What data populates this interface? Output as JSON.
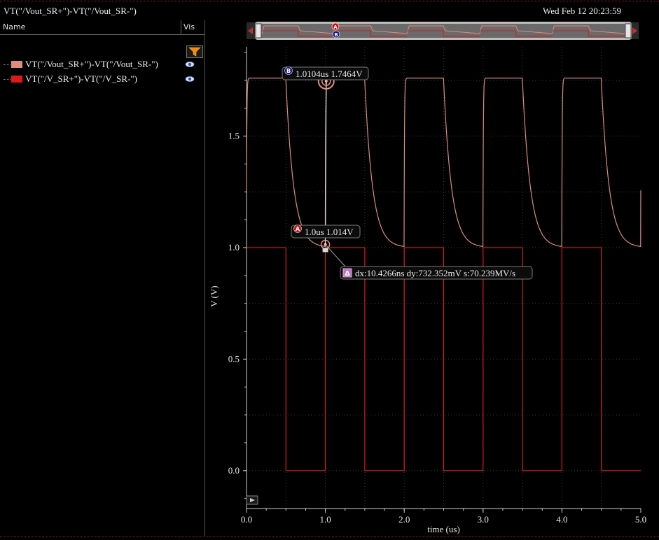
{
  "window": {
    "title": "VT(\"/Vout_SR+\")-VT(\"/Vout_SR-\")",
    "timestamp": "Wed Feb 12 20:23:59"
  },
  "signal_list": {
    "col_name": "Name",
    "col_vis": "Vis",
    "items": [
      {
        "label": "VT(\"/Vout_SR+\")-VT(\"/Vout_SR-\")",
        "color": "#e08a80",
        "visible": true
      },
      {
        "label": "VT(\"/V_SR+\")-VT(\"/V_SR-\")",
        "color": "#e01818",
        "visible": true
      }
    ]
  },
  "markers": {
    "a": {
      "badge": "A",
      "label": "1.0us 1.014V"
    },
    "b": {
      "badge": "B",
      "label": "1.0104us 1.7464V"
    },
    "delta": {
      "badge": "Δ",
      "label": "dx:10.4266ns dy:732.352mV s:70.239MV/s"
    }
  },
  "chart_data": {
    "type": "line",
    "xlabel": "time (us)",
    "ylabel": "V (V)",
    "xlim": [
      0,
      5
    ],
    "ylim": [
      -0.17,
      1.9
    ],
    "x_ticks": [
      "0.0",
      "1.0",
      "2.0",
      "3.0",
      "4.0",
      "5.0"
    ],
    "y_ticks": [
      "0.0",
      "0.5",
      "1.0",
      "1.5"
    ],
    "grid": true,
    "series": [
      {
        "name": "VT(\"/Vout_SR+\")-VT(\"/Vout_SR-\")",
        "color": "#e08a80",
        "kind": "rc_square",
        "period": 1.0,
        "high_time": 0.5,
        "v_low": 1.0,
        "v_high": 1.76,
        "tau": 0.1,
        "values": {
          "x": [
            0.0,
            0.01,
            0.5,
            0.6,
            0.8,
            1.0,
            1.01,
            1.5,
            2.0,
            2.01,
            2.5,
            3.0,
            3.01,
            3.5,
            4.0,
            4.01,
            4.5,
            5.0
          ],
          "y": [
            1.0,
            1.76,
            1.76,
            1.3,
            1.08,
            1.014,
            1.7464,
            1.76,
            1.02,
            1.76,
            1.76,
            1.02,
            1.76,
            1.76,
            1.02,
            1.76,
            1.76,
            1.02
          ]
        }
      },
      {
        "name": "VT(\"/V_SR+\")-VT(\"/V_SR-\")",
        "color": "#e01818",
        "kind": "square",
        "period": 1.0,
        "high_time": 0.5,
        "v_low": 0.0,
        "v_high": 1.0,
        "values": {
          "x": [
            0.0,
            0.5,
            0.5,
            1.0,
            1.0,
            1.5,
            1.5,
            2.0,
            2.0,
            2.5,
            2.5,
            3.0,
            3.0,
            3.5,
            3.5,
            4.0,
            4.0,
            4.5,
            4.5,
            5.0
          ],
          "y": [
            1.0,
            1.0,
            0.0,
            0.0,
            1.0,
            1.0,
            0.0,
            0.0,
            1.0,
            1.0,
            0.0,
            0.0,
            1.0,
            1.0,
            0.0,
            0.0,
            1.0,
            1.0,
            0.0,
            0.0
          ]
        }
      }
    ],
    "marker_points": [
      {
        "id": "A",
        "x": 1.0,
        "y": 1.014
      },
      {
        "id": "B",
        "x": 1.0104,
        "y": 1.7464
      }
    ]
  },
  "colors": {
    "background": "#000000",
    "grid": "#3a3a3a",
    "axis": "#cfcfcf",
    "marker_badge_a": "#c81414",
    "marker_badge_b": "#1a1a8a",
    "delta_badge": "#c070c0"
  }
}
